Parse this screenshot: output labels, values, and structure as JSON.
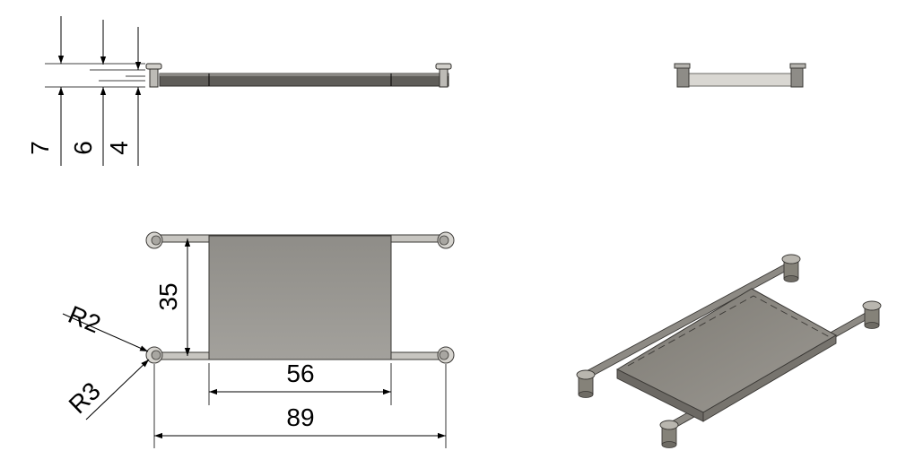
{
  "drawing": {
    "views": [
      "front",
      "side",
      "top",
      "isometric"
    ],
    "colors": {
      "part_face": "#9a9893",
      "part_dark": "#5e5c58",
      "part_light": "#c9c7c2",
      "edge": "#3c3a37",
      "dimension": "#000000"
    },
    "dimensions": {
      "front_heights": [
        {
          "value": "7"
        },
        {
          "value": "6"
        },
        {
          "value": "4"
        }
      ],
      "top": {
        "height": "35",
        "inner_width": "56",
        "overall_width": "89",
        "radius_outer": "R2",
        "radius_inner": "R3"
      }
    }
  }
}
